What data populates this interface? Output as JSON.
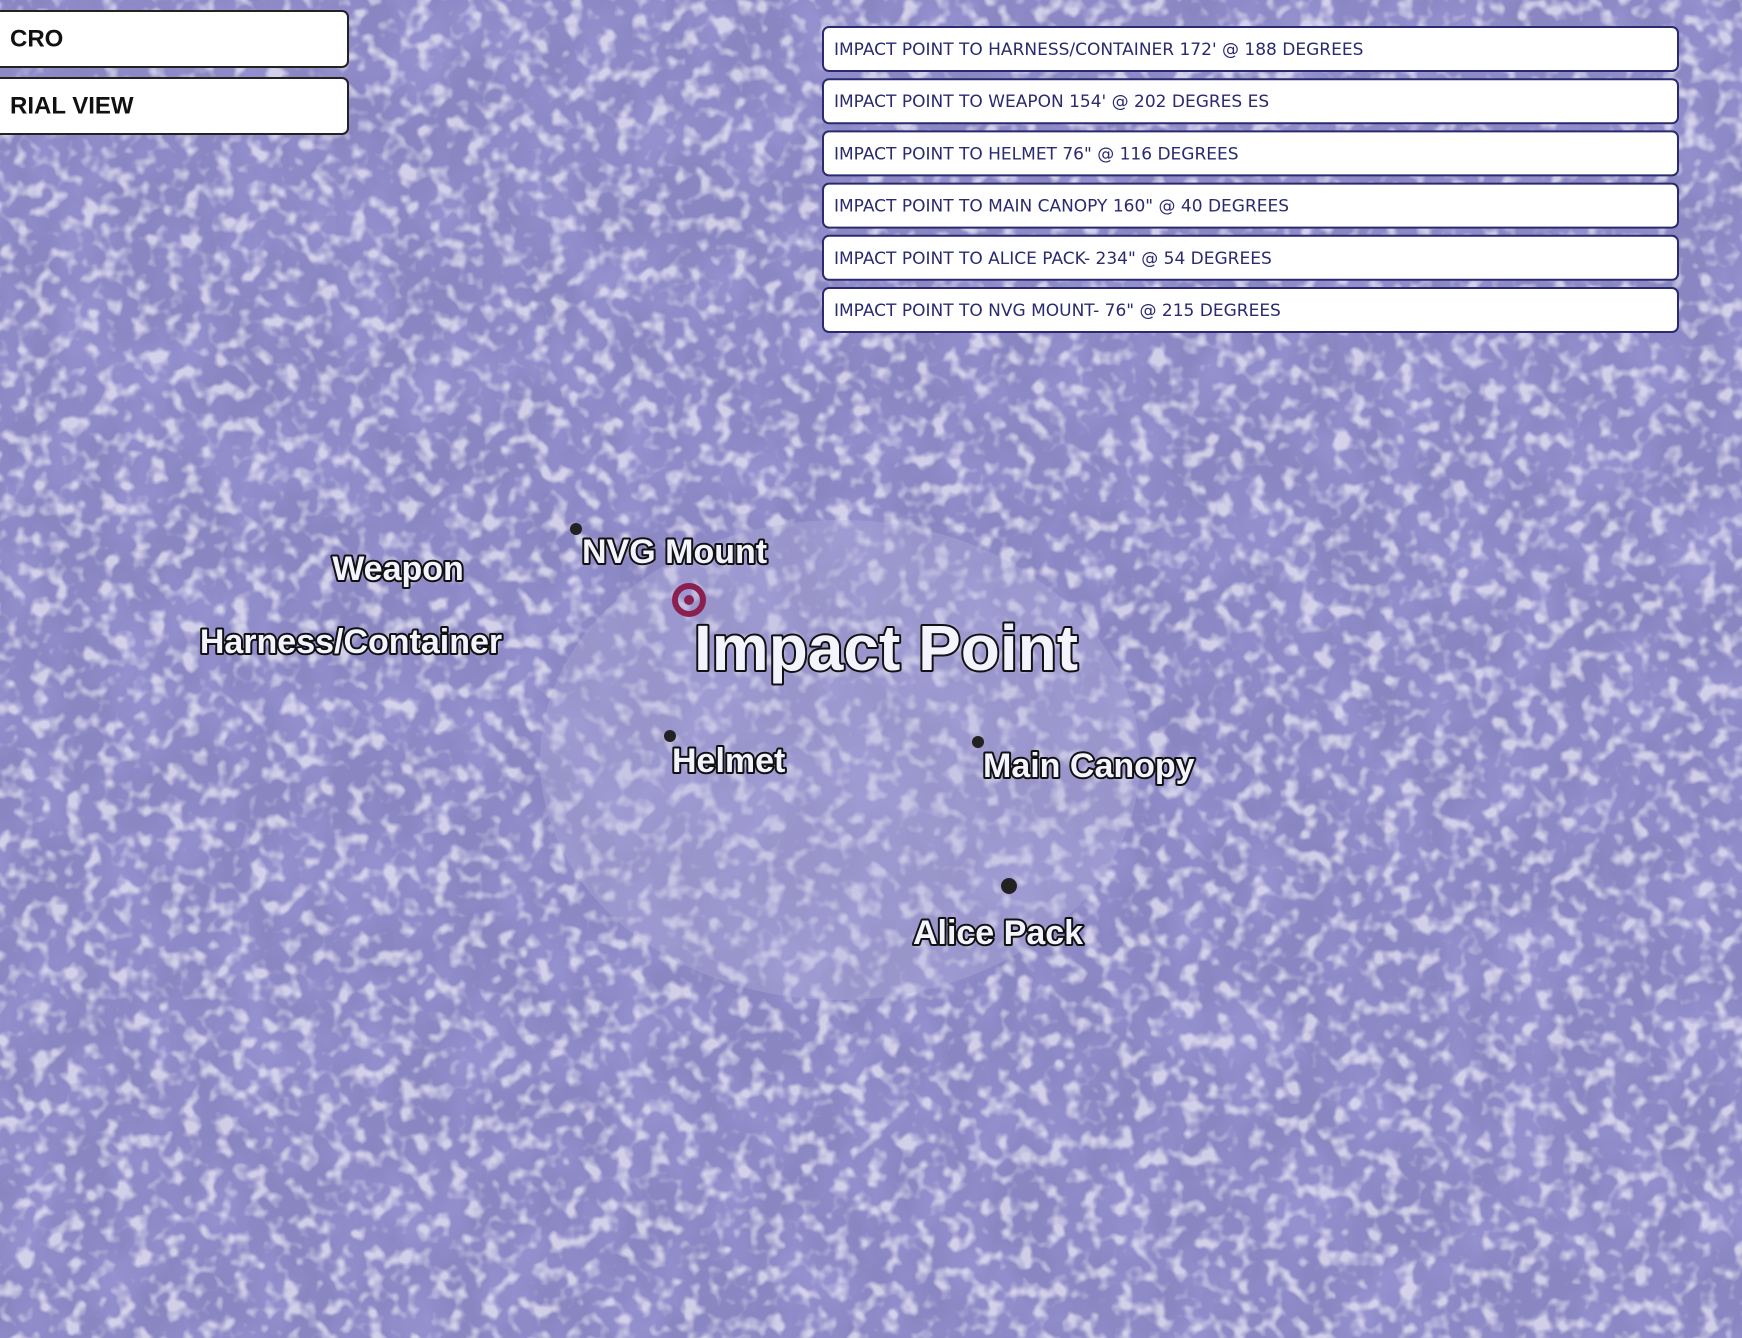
{
  "header": {
    "boxes": [
      "CRO",
      "RIAL VIEW"
    ]
  },
  "info_boxes": [
    "IMPACT POINT TO HARNESS/CONTAINER  172' @ 188 DEGREES",
    "IMPACT POINT TO WEAPON  154' @ 202 DEGRES ES",
    "IMPACT POINT TO HELMET  76\" @ 116 DEGREES",
    "IMPACT POINT TO  MAIN CANOPY  160\" @ 40 DEGREES",
    "IMPACT POINT TO ALICE PACK- 234\" @ 54 DEGREES",
    "IMPACT POINT TO NVG MOUNT- 76\" @ 215 DEGREES"
  ],
  "map": {
    "labels": {
      "weapon": "Weapon",
      "harness": "Harness/Container",
      "nvg": "NVG Mount",
      "impact": "Impact Point",
      "helmet": "Helmet",
      "canopy": "Main Canopy",
      "alice": "Alice Pack"
    }
  }
}
